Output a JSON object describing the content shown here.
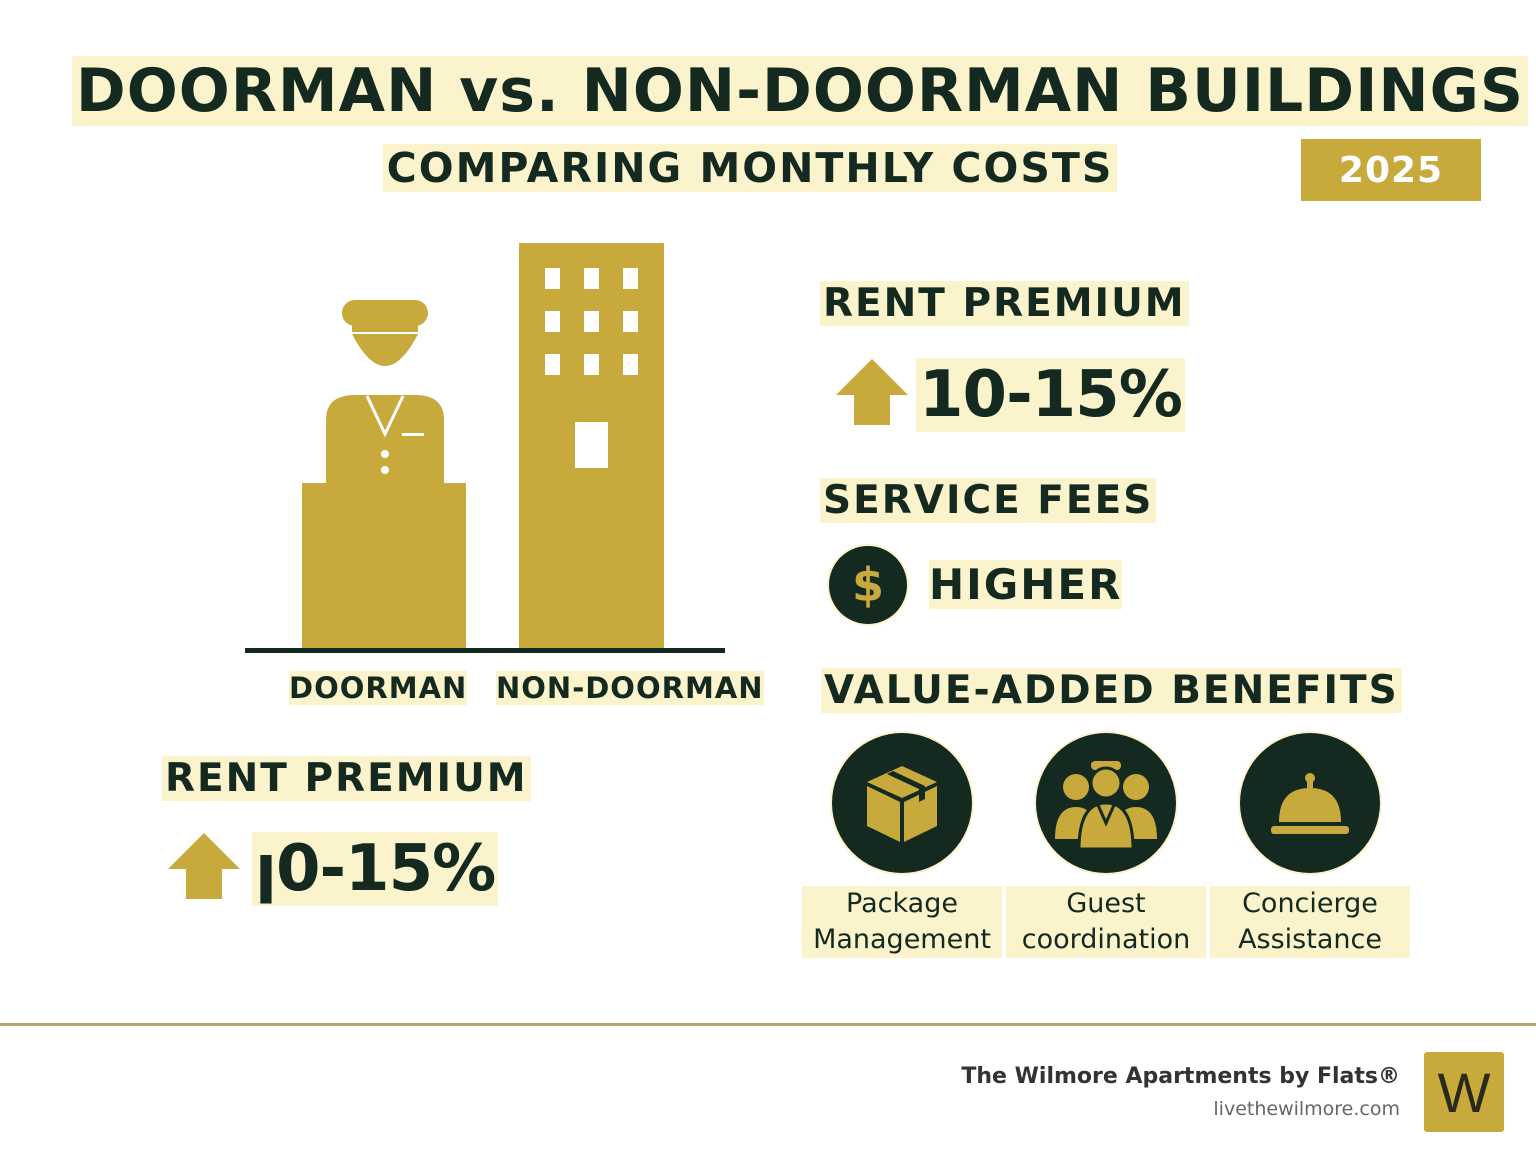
{
  "header": {
    "title": "DOORMAN vs. NON-DOORMAN BUILDINGS",
    "subtitle": "COMPARING MONTHLY COSTS",
    "year": "2025"
  },
  "illustration": {
    "doorman_label": "DOORMAN",
    "non_doorman_label": "NON-DOORMAN"
  },
  "left_section": {
    "heading": "RENT PREMIUM",
    "value": "ꞁ0-15%"
  },
  "right_section": {
    "rent_premium": {
      "heading": "RENT PREMIUM",
      "value": "10-15%"
    },
    "service_fees": {
      "heading": "SERVICE FEES",
      "icon_text": "$",
      "value": "HIGHER"
    },
    "benefits": {
      "heading": "VALUE-ADDED BENEFITS",
      "items": [
        {
          "icon": "package-icon",
          "line1": "Package",
          "line2": "Management"
        },
        {
          "icon": "guest-group-icon",
          "line1": "Guest",
          "line2": "coordination"
        },
        {
          "icon": "service-bell-icon",
          "line1": "Concierge",
          "line2": "Assistance"
        }
      ]
    }
  },
  "footer": {
    "brand": "The Wilmore Apartments by Flats®",
    "site": "livethewilmore.com",
    "logo_letter": "W"
  },
  "colors": {
    "gold": "#c8a93c",
    "dark_green": "#14291f",
    "highlight": "#fbf3cc"
  }
}
